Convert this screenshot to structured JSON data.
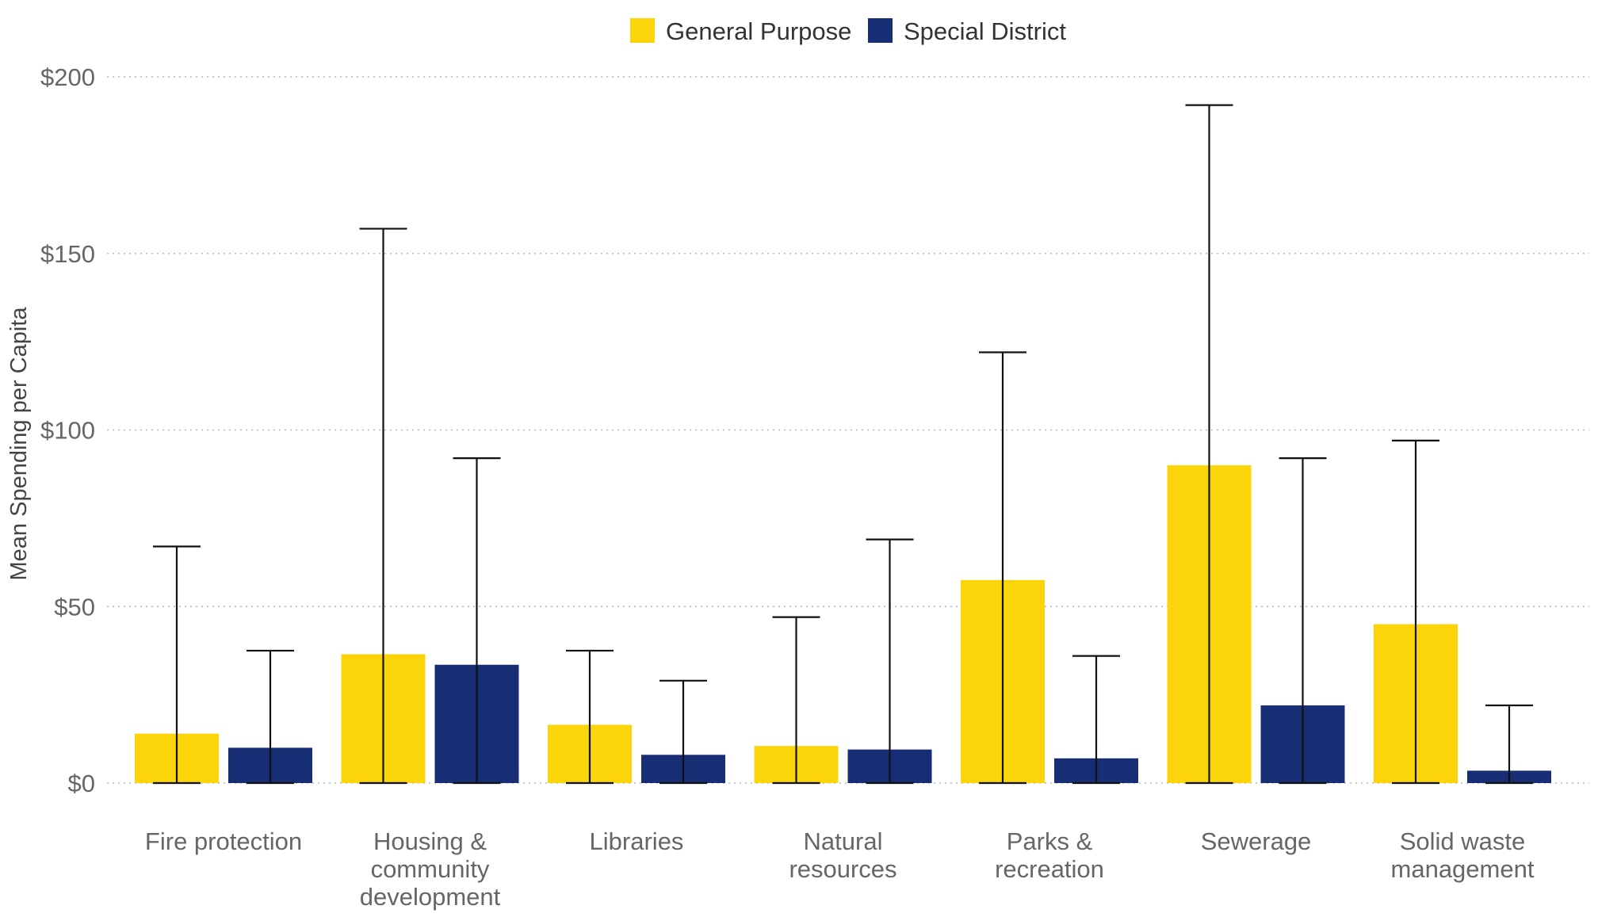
{
  "chart_data": {
    "type": "bar",
    "title": "",
    "xlabel": "",
    "ylabel": "Mean Spending per Capita",
    "ylim": [
      0,
      200
    ],
    "yticks": [
      0,
      50,
      100,
      150,
      200
    ],
    "ytick_labels": [
      "$0",
      "$50",
      "$100",
      "$150",
      "$200"
    ],
    "grid": "horizontal dotted",
    "legend_position": "top-center",
    "categories": [
      [
        "Fire protection"
      ],
      [
        "Housing &",
        "community",
        "development"
      ],
      [
        "Libraries"
      ],
      [
        "Natural",
        "resources"
      ],
      [
        "Parks &",
        "recreation"
      ],
      [
        "Sewerage"
      ],
      [
        "Solid waste",
        "management"
      ]
    ],
    "series": [
      {
        "name": "General Purpose",
        "color": "#FBD50A",
        "values": [
          14,
          36.5,
          16.5,
          10.5,
          57.5,
          90,
          45
        ],
        "error_upper": [
          67,
          157,
          37.5,
          47,
          122,
          192,
          97
        ]
      },
      {
        "name": "Special District",
        "color": "#172D74",
        "values": [
          10,
          33.5,
          8,
          9.5,
          7,
          22,
          3.5
        ],
        "error_upper": [
          37.5,
          92,
          29,
          69,
          36,
          92,
          22
        ]
      }
    ]
  }
}
